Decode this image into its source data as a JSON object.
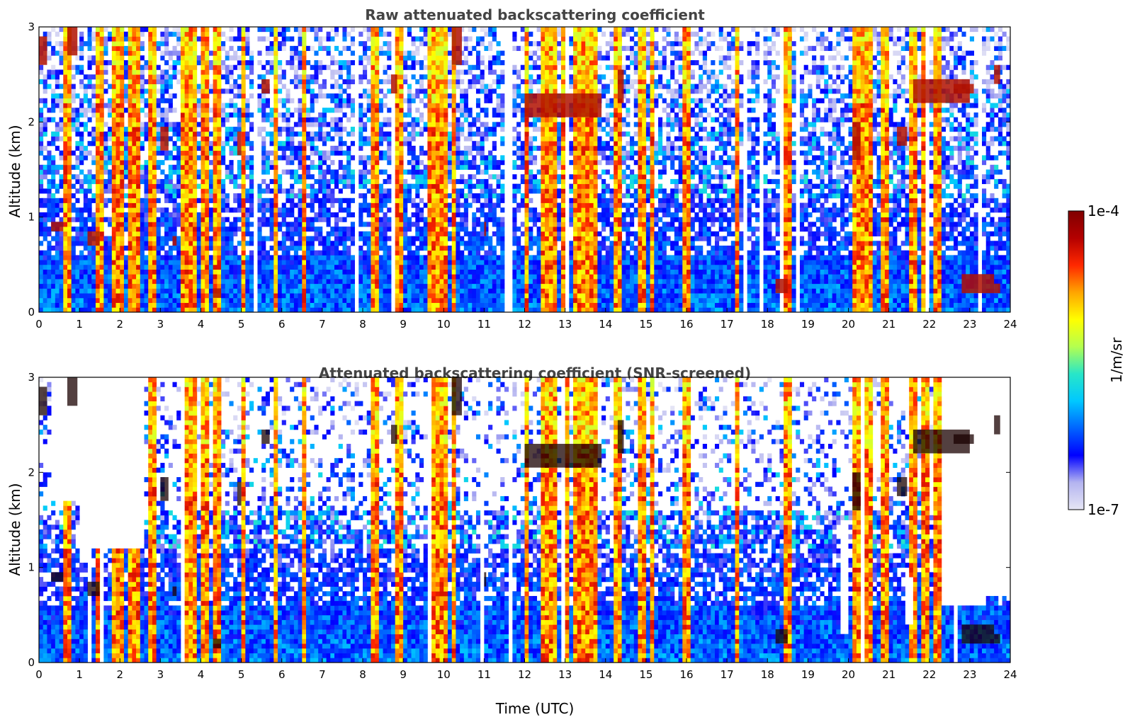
{
  "chart_data": [
    {
      "type": "heatmap",
      "title": "Raw attenuated backscattering coefficient",
      "xlabel": "",
      "ylabel": "Altitude (km)",
      "xlim": [
        0,
        24
      ],
      "ylim": [
        0,
        3
      ],
      "x_ticks": [
        "0",
        "1",
        "2",
        "3",
        "4",
        "5",
        "6",
        "7",
        "8",
        "9",
        "10",
        "11",
        "12",
        "13",
        "14",
        "15",
        "16",
        "17",
        "18",
        "19",
        "20",
        "21",
        "22",
        "23",
        "24"
      ],
      "y_ticks": [
        "0",
        "1",
        "2",
        "3"
      ],
      "screened": false,
      "value_range": [
        1e-07,
        0.0001
      ],
      "colormap": "jet",
      "bright_columns_utc": [
        [
          0.6,
          0.75
        ],
        [
          1.45,
          1.65
        ],
        [
          1.85,
          2.1
        ],
        [
          2.2,
          2.5
        ],
        [
          2.75,
          2.85
        ],
        [
          3.5,
          3.65
        ],
        [
          3.75,
          3.9
        ],
        [
          4.0,
          4.2
        ],
        [
          4.35,
          4.45
        ],
        [
          5.0,
          5.1
        ],
        [
          5.8,
          5.9
        ],
        [
          6.5,
          6.6
        ],
        [
          8.25,
          8.35
        ],
        [
          8.85,
          8.95
        ],
        [
          9.65,
          9.85
        ],
        [
          9.95,
          10.1
        ],
        [
          10.2,
          10.3
        ],
        [
          12.0,
          12.1
        ],
        [
          12.45,
          12.8
        ],
        [
          12.95,
          13.1
        ],
        [
          13.2,
          13.55
        ],
        [
          13.6,
          13.75
        ],
        [
          14.2,
          14.4
        ],
        [
          14.85,
          15.0
        ],
        [
          15.1,
          15.2
        ],
        [
          15.95,
          16.15
        ],
        [
          17.2,
          17.3
        ],
        [
          18.35,
          18.55
        ],
        [
          20.15,
          20.35
        ],
        [
          20.45,
          20.6
        ],
        [
          20.85,
          20.95
        ],
        [
          21.55,
          21.7
        ],
        [
          21.85,
          22.0
        ],
        [
          22.1,
          22.3
        ]
      ],
      "cloud_layers": [
        [
          0.0,
          0.2,
          2.6,
          2.9
        ],
        [
          0.3,
          0.6,
          0.85,
          0.95
        ],
        [
          0.7,
          0.95,
          2.7,
          3.0
        ],
        [
          1.2,
          1.5,
          0.7,
          0.85
        ],
        [
          3.0,
          3.2,
          1.7,
          1.95
        ],
        [
          3.3,
          3.4,
          0.7,
          0.8
        ],
        [
          4.3,
          4.5,
          0.15,
          0.25
        ],
        [
          4.9,
          5.0,
          1.65,
          1.9
        ],
        [
          5.5,
          5.7,
          2.3,
          2.45
        ],
        [
          8.7,
          8.85,
          2.3,
          2.5
        ],
        [
          10.2,
          10.45,
          2.6,
          3.0
        ],
        [
          11.0,
          11.05,
          0.8,
          0.95
        ],
        [
          12.0,
          13.9,
          2.05,
          2.3
        ],
        [
          14.3,
          14.45,
          2.2,
          2.55
        ],
        [
          18.2,
          18.5,
          0.2,
          0.35
        ],
        [
          20.1,
          20.3,
          1.6,
          2.0
        ],
        [
          21.2,
          21.45,
          1.75,
          1.95
        ],
        [
          21.6,
          23.0,
          2.2,
          2.45
        ],
        [
          22.6,
          23.1,
          2.3,
          2.4
        ],
        [
          22.8,
          23.6,
          0.2,
          0.4
        ],
        [
          23.6,
          23.75,
          0.2,
          0.3
        ],
        [
          23.6,
          23.75,
          2.4,
          2.6
        ]
      ]
    },
    {
      "type": "heatmap",
      "title": "Attenuated backscattering coefficient (SNR-screened)",
      "xlabel": "Time (UTC)",
      "ylabel": "Altitude (km)",
      "xlim": [
        0,
        24
      ],
      "ylim": [
        0,
        3
      ],
      "x_ticks": [
        "0",
        "1",
        "2",
        "3",
        "4",
        "5",
        "6",
        "7",
        "8",
        "9",
        "10",
        "11",
        "12",
        "13",
        "14",
        "15",
        "16",
        "17",
        "18",
        "19",
        "20",
        "21",
        "22",
        "23",
        "24"
      ],
      "y_ticks": [
        "0",
        "1",
        "2",
        "3"
      ],
      "screened": true,
      "value_range": [
        1e-07,
        0.0001
      ],
      "colormap": "jet",
      "screened_regions": [
        [
          0.3,
          1.0,
          1.7,
          3.0
        ],
        [
          1.0,
          2.6,
          1.2,
          3.0
        ],
        [
          19.8,
          20.0,
          0.3,
          1.5
        ],
        [
          21.4,
          21.6,
          0.4,
          0.9
        ],
        [
          22.3,
          23.4,
          0.6,
          3.0
        ],
        [
          23.4,
          24,
          0.7,
          3.0
        ]
      ]
    }
  ],
  "colorbar": {
    "label": "1/m/sr",
    "min_label": "1e-7",
    "max_label": "1e-4",
    "colors": [
      "#e6e6f5",
      "#b4b4f0",
      "#0000ff",
      "#0064ff",
      "#00c8ff",
      "#28e6c8",
      "#b4ff50",
      "#ffff00",
      "#ffa500",
      "#ff2800",
      "#b40000",
      "#800000"
    ]
  }
}
